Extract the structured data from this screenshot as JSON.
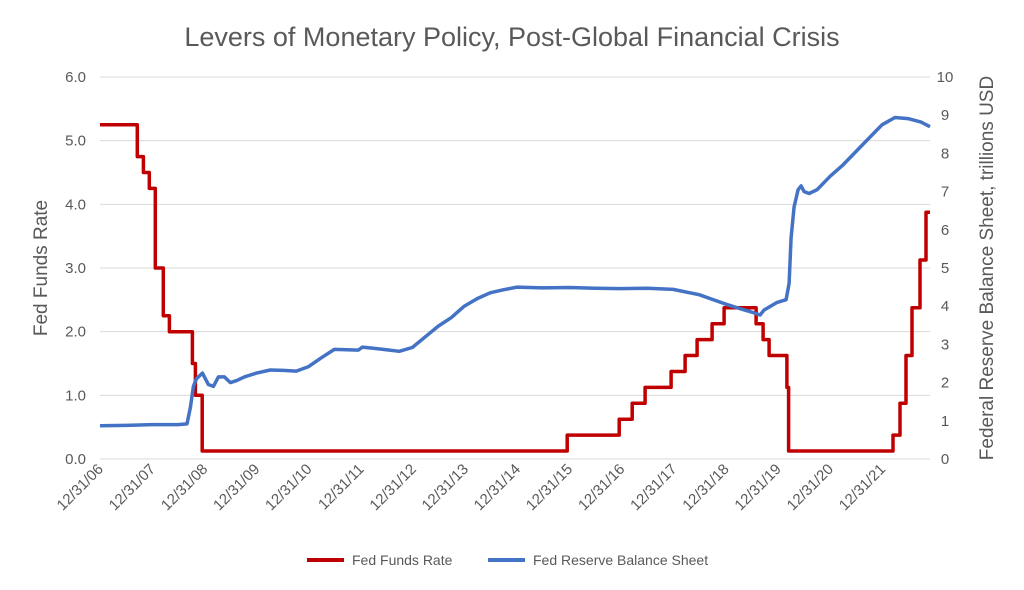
{
  "chart_data": {
    "type": "line",
    "title": "Levers of Monetary Policy, Post-Global Financial Crisis",
    "ylabel_left": "Fed Funds Rate",
    "ylabel_right": "Federal Reserve Balance Sheet, trillions USD",
    "ylim_left": [
      0,
      6
    ],
    "ylim_right": [
      0,
      10
    ],
    "yticks_left": [
      "0.0",
      "1.0",
      "2.0",
      "3.0",
      "4.0",
      "5.0",
      "6.0"
    ],
    "yticks_right": [
      "0",
      "1",
      "2",
      "3",
      "4",
      "5",
      "6",
      "7",
      "8",
      "9",
      "10"
    ],
    "xlim": [
      "2006-12-31",
      "2022-11-30"
    ],
    "x_tick_labels": [
      "12/31/06",
      "12/31/07",
      "12/31/08",
      "12/31/09",
      "12/31/10",
      "12/31/11",
      "12/31/12",
      "12/31/13",
      "12/31/14",
      "12/31/15",
      "12/31/16",
      "12/31/17",
      "12/31/18",
      "12/31/19",
      "12/31/20",
      "12/31/21"
    ],
    "x_tick_dates": [
      "2006-12-31",
      "2007-12-31",
      "2008-12-31",
      "2009-12-31",
      "2010-12-31",
      "2011-12-31",
      "2012-12-31",
      "2013-12-31",
      "2014-12-31",
      "2015-12-31",
      "2016-12-31",
      "2017-12-31",
      "2018-12-31",
      "2019-12-31",
      "2020-12-31",
      "2021-12-31"
    ],
    "grid": "horizontal",
    "legend_position": "bottom",
    "series": [
      {
        "name": "Fed Funds Rate",
        "axis": "left",
        "color": "#c00000",
        "step": true,
        "points": [
          [
            "2006-12-31",
            5.25
          ],
          [
            "2007-09-18",
            4.75
          ],
          [
            "2007-10-31",
            4.5
          ],
          [
            "2007-12-11",
            4.25
          ],
          [
            "2008-01-22",
            3.0
          ],
          [
            "2008-03-18",
            2.25
          ],
          [
            "2008-04-30",
            2.0
          ],
          [
            "2008-10-08",
            1.5
          ],
          [
            "2008-10-29",
            1.0
          ],
          [
            "2008-12-16",
            0.125
          ],
          [
            "2015-12-16",
            0.375
          ],
          [
            "2016-12-14",
            0.625
          ],
          [
            "2017-03-15",
            0.875
          ],
          [
            "2017-06-14",
            1.125
          ],
          [
            "2017-12-13",
            1.375
          ],
          [
            "2018-03-21",
            1.625
          ],
          [
            "2018-06-13",
            1.875
          ],
          [
            "2018-09-26",
            2.125
          ],
          [
            "2018-12-19",
            2.375
          ],
          [
            "2019-07-31",
            2.125
          ],
          [
            "2019-09-18",
            1.875
          ],
          [
            "2019-10-30",
            1.625
          ],
          [
            "2020-03-03",
            1.125
          ],
          [
            "2020-03-15",
            0.125
          ],
          [
            "2022-03-16",
            0.375
          ],
          [
            "2022-05-04",
            0.875
          ],
          [
            "2022-06-15",
            1.625
          ],
          [
            "2022-07-27",
            2.375
          ],
          [
            "2022-09-21",
            3.125
          ],
          [
            "2022-11-02",
            3.875
          ],
          [
            "2022-11-30",
            3.875
          ]
        ]
      },
      {
        "name": "Fed Reserve Balance Sheet",
        "axis": "right",
        "color": "#4472c4",
        "points": [
          [
            "2006-12-31",
            0.87
          ],
          [
            "2007-06-30",
            0.88
          ],
          [
            "2007-12-31",
            0.9
          ],
          [
            "2008-06-30",
            0.9
          ],
          [
            "2008-08-31",
            0.92
          ],
          [
            "2008-09-24",
            1.35
          ],
          [
            "2008-10-15",
            1.9
          ],
          [
            "2008-11-05",
            2.1
          ],
          [
            "2008-12-17",
            2.25
          ],
          [
            "2009-01-28",
            1.95
          ],
          [
            "2009-03-04",
            1.9
          ],
          [
            "2009-04-08",
            2.15
          ],
          [
            "2009-05-20",
            2.15
          ],
          [
            "2009-07-01",
            2.0
          ],
          [
            "2009-08-12",
            2.05
          ],
          [
            "2009-10-07",
            2.15
          ],
          [
            "2009-12-31",
            2.25
          ],
          [
            "2010-04-07",
            2.33
          ],
          [
            "2010-07-07",
            2.32
          ],
          [
            "2010-10-06",
            2.3
          ],
          [
            "2010-12-31",
            2.42
          ],
          [
            "2011-03-30",
            2.65
          ],
          [
            "2011-06-29",
            2.87
          ],
          [
            "2011-09-28",
            2.86
          ],
          [
            "2011-12-14",
            2.85
          ],
          [
            "2012-01-11",
            2.93
          ],
          [
            "2012-03-28",
            2.9
          ],
          [
            "2012-06-27",
            2.86
          ],
          [
            "2012-09-26",
            2.82
          ],
          [
            "2012-12-26",
            2.92
          ],
          [
            "2013-03-27",
            3.2
          ],
          [
            "2013-06-26",
            3.48
          ],
          [
            "2013-09-25",
            3.7
          ],
          [
            "2013-12-25",
            4.0
          ],
          [
            "2014-03-26",
            4.2
          ],
          [
            "2014-06-25",
            4.35
          ],
          [
            "2014-09-24",
            4.43
          ],
          [
            "2014-12-31",
            4.5
          ],
          [
            "2015-06-24",
            4.48
          ],
          [
            "2015-12-30",
            4.49
          ],
          [
            "2016-06-29",
            4.47
          ],
          [
            "2016-12-28",
            4.46
          ],
          [
            "2017-06-28",
            4.47
          ],
          [
            "2017-12-27",
            4.44
          ],
          [
            "2018-06-27",
            4.3
          ],
          [
            "2018-12-26",
            4.06
          ],
          [
            "2019-03-27",
            3.95
          ],
          [
            "2019-06-26",
            3.85
          ],
          [
            "2019-08-28",
            3.77
          ],
          [
            "2019-09-25",
            3.9
          ],
          [
            "2019-12-25",
            4.1
          ],
          [
            "2020-02-26",
            4.17
          ],
          [
            "2020-03-18",
            4.6
          ],
          [
            "2020-04-01",
            5.8
          ],
          [
            "2020-04-22",
            6.6
          ],
          [
            "2020-05-20",
            7.05
          ],
          [
            "2020-06-10",
            7.15
          ],
          [
            "2020-07-01",
            7.0
          ],
          [
            "2020-08-05",
            6.95
          ],
          [
            "2020-09-30",
            7.05
          ],
          [
            "2020-12-30",
            7.4
          ],
          [
            "2021-03-31",
            7.7
          ],
          [
            "2021-06-30",
            8.05
          ],
          [
            "2021-09-29",
            8.4
          ],
          [
            "2021-12-29",
            8.75
          ],
          [
            "2022-03-30",
            8.94
          ],
          [
            "2022-06-29",
            8.91
          ],
          [
            "2022-09-28",
            8.82
          ],
          [
            "2022-11-30",
            8.7
          ]
        ]
      }
    ]
  }
}
